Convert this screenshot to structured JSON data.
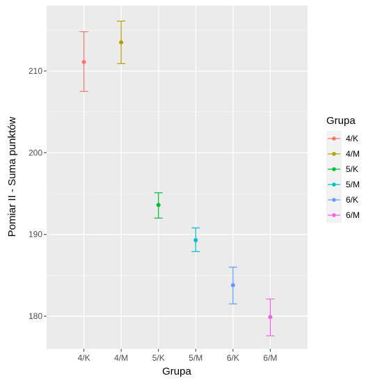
{
  "chart_data": {
    "type": "errorbar",
    "xlabel": "Grupa",
    "ylabel": "Pomiar II - Suma punktów",
    "ylim": [
      176,
      218
    ],
    "yticks": [
      180,
      190,
      200,
      210
    ],
    "grid": true,
    "legend": {
      "title": "Grupa",
      "placement": "right",
      "entries": [
        "4/K",
        "4/M",
        "5/K",
        "5/M",
        "6/K",
        "6/M"
      ]
    },
    "categories": [
      "4/K",
      "4/M",
      "5/K",
      "5/M",
      "6/K",
      "6/M"
    ],
    "points": [
      {
        "group": "4/K",
        "mean": 211.1,
        "lower": 207.5,
        "upper": 214.8,
        "color": "#F8766D"
      },
      {
        "group": "4/M",
        "mean": 213.5,
        "lower": 210.9,
        "upper": 216.1,
        "color": "#B79F00"
      },
      {
        "group": "5/K",
        "mean": 193.6,
        "lower": 192.0,
        "upper": 195.1,
        "color": "#00BA38"
      },
      {
        "group": "5/M",
        "mean": 189.3,
        "lower": 187.9,
        "upper": 190.8,
        "color": "#00BFC4"
      },
      {
        "group": "6/K",
        "mean": 183.8,
        "lower": 181.5,
        "upper": 186.0,
        "color": "#619CFF"
      },
      {
        "group": "6/M",
        "mean": 179.9,
        "lower": 177.6,
        "upper": 182.1,
        "color": "#F564E3"
      }
    ]
  }
}
